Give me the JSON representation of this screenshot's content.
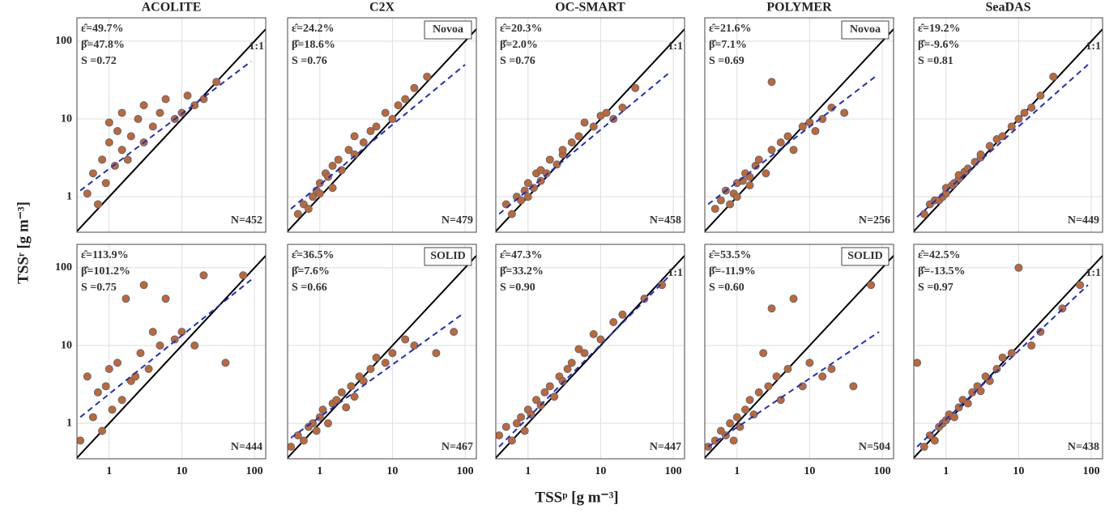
{
  "ylabel": "TSSʳ [g m⁻³]",
  "xlabel": "TSSᵖ [g m⁻³]",
  "chart_data": [
    {
      "type": "scatter",
      "title": "ACOLITE",
      "eps": "ε̂=49.7%",
      "beta": "β̂=47.8%",
      "s": "S =0.72",
      "n": "N=452",
      "identity_label": "1:1",
      "x": [
        0.5,
        0.6,
        0.7,
        0.8,
        0.9,
        1,
        1,
        1.2,
        1.3,
        1.5,
        1.5,
        1.8,
        2,
        2.5,
        3,
        3,
        4,
        5,
        6,
        8,
        10,
        12,
        15,
        20,
        30
      ],
      "values": [
        1.1,
        2,
        0.8,
        3,
        1.5,
        5,
        9,
        2.5,
        7,
        4,
        12,
        3,
        6,
        10,
        5,
        15,
        8,
        12,
        18,
        10,
        12,
        20,
        15,
        18,
        30
      ],
      "fit_x": [
        0.4,
        90
      ],
      "fit_y": [
        1.2,
        55
      ],
      "xlim": [
        0.36,
        143
      ],
      "ylim": [
        0.35,
        200
      ],
      "xticks": [
        1,
        10,
        100
      ],
      "yticks": [
        1,
        10,
        100
      ],
      "log": true,
      "grid": true,
      "point_color": "#c8662a",
      "point_edge": "#4d6d8f",
      "fit_color": "#1f2fbf"
    },
    {
      "type": "scatter",
      "title": "C2X",
      "eps": "ε̂=24.2%",
      "beta": "β̂=18.6%",
      "s": "S =0.76",
      "n": "N=479",
      "method": "Novoa",
      "x": [
        0.5,
        0.6,
        0.7,
        0.8,
        0.9,
        1,
        1,
        1.2,
        1.3,
        1.5,
        1.5,
        1.8,
        2,
        2.5,
        3,
        3,
        4,
        5,
        6,
        8,
        10,
        12,
        15,
        20,
        30
      ],
      "values": [
        0.6,
        0.8,
        0.7,
        1,
        1.2,
        1.5,
        1.1,
        2,
        1.8,
        2.5,
        1.3,
        3,
        2.2,
        4,
        3.5,
        6,
        5,
        7,
        8,
        12,
        10,
        15,
        18,
        25,
        35
      ],
      "fit_x": [
        0.4,
        100
      ],
      "fit_y": [
        0.7,
        50
      ],
      "xlim": [
        0.36,
        143
      ],
      "ylim": [
        0.35,
        200
      ],
      "xticks": [
        1,
        10,
        100
      ],
      "yticks": [
        1,
        10,
        100
      ],
      "log": true,
      "grid": true,
      "point_color": "#c8662a",
      "point_edge": "#4d6d8f",
      "fit_color": "#1f2fbf"
    },
    {
      "type": "scatter",
      "title": "OC-SMART",
      "eps": "ε̂=20.3%",
      "beta": "β̂=2.0%",
      "s": "S =0.76",
      "n": "N=458",
      "identity_label": "1:1",
      "x": [
        0.5,
        0.6,
        0.7,
        0.8,
        0.9,
        1,
        1,
        1.2,
        1.3,
        1.5,
        1.5,
        1.8,
        2,
        2.5,
        3,
        3,
        4,
        5,
        6,
        8,
        10,
        12,
        15,
        20,
        30
      ],
      "values": [
        0.8,
        0.6,
        1,
        0.9,
        1.2,
        1,
        1.5,
        1.3,
        2,
        1.6,
        2.2,
        2,
        3,
        2.6,
        3.5,
        4,
        5,
        6,
        9,
        8,
        11,
        12,
        10,
        14,
        25
      ],
      "fit_x": [
        0.4,
        90
      ],
      "fit_y": [
        0.6,
        40
      ],
      "xlim": [
        0.36,
        143
      ],
      "ylim": [
        0.35,
        200
      ],
      "xticks": [
        1,
        10,
        100
      ],
      "yticks": [
        1,
        10,
        100
      ],
      "log": true,
      "grid": true,
      "point_color": "#c8662a",
      "point_edge": "#4d6d8f",
      "fit_color": "#1f2fbf"
    },
    {
      "type": "scatter",
      "title": "POLYMER",
      "eps": "ε̂=21.6%",
      "beta": "β̂=7.1%",
      "s": "S =0.69",
      "n": "N=256",
      "method": "Novoa",
      "x": [
        0.5,
        0.6,
        0.7,
        0.8,
        0.9,
        1,
        1,
        1.2,
        1.3,
        1.5,
        1.5,
        1.8,
        2,
        2.5,
        3,
        3,
        4,
        5,
        6,
        8,
        10,
        12,
        15,
        20,
        30
      ],
      "values": [
        0.7,
        0.9,
        1.2,
        0.8,
        1.1,
        1.5,
        1,
        1.6,
        2,
        1.8,
        1.4,
        2.5,
        3,
        2,
        4,
        30,
        5,
        6,
        4,
        8,
        9,
        7,
        10,
        14,
        12
      ],
      "fit_x": [
        0.4,
        80
      ],
      "fit_y": [
        0.8,
        35
      ],
      "xlim": [
        0.36,
        143
      ],
      "ylim": [
        0.35,
        200
      ],
      "xticks": [
        1,
        10,
        100
      ],
      "yticks": [
        1,
        10,
        100
      ],
      "log": true,
      "grid": true,
      "point_color": "#c8662a",
      "point_edge": "#4d6d8f",
      "fit_color": "#1f2fbf"
    },
    {
      "type": "scatter",
      "title": "SeaDAS",
      "eps": "ε̂=19.2%",
      "beta": "β̂=-9.6%",
      "s": "S =0.81",
      "n": "N=449",
      "identity_label": "1:1",
      "x": [
        0.5,
        0.6,
        0.7,
        0.8,
        0.9,
        1,
        1,
        1.2,
        1.3,
        1.5,
        1.5,
        1.8,
        2,
        2.5,
        3,
        3,
        4,
        5,
        6,
        8,
        10,
        12,
        15,
        20,
        30
      ],
      "values": [
        0.6,
        0.8,
        0.9,
        0.9,
        1,
        1.1,
        1.3,
        1.4,
        1.5,
        1.7,
        1.9,
        2.1,
        2.3,
        2.8,
        3.2,
        3.5,
        4.5,
        5.5,
        6,
        8,
        10,
        12,
        14,
        20,
        35
      ],
      "fit_x": [
        0.4,
        90
      ],
      "fit_y": [
        0.55,
        50
      ],
      "xlim": [
        0.36,
        143
      ],
      "ylim": [
        0.35,
        200
      ],
      "xticks": [
        1,
        10,
        100
      ],
      "yticks": [
        1,
        10,
        100
      ],
      "log": true,
      "grid": true,
      "point_color": "#c8662a",
      "point_edge": "#4d6d8f",
      "fit_color": "#1f2fbf"
    },
    {
      "type": "scatter",
      "eps": "ε̂=113.9%",
      "beta": "β̂=101.2%",
      "s": "S =0.75",
      "n": "N=444",
      "x": [
        0.4,
        0.5,
        0.6,
        0.7,
        0.8,
        0.9,
        1,
        1.1,
        1.3,
        1.5,
        1.7,
        2,
        2.3,
        2.7,
        3,
        3.5,
        4,
        5,
        6,
        8,
        10,
        15,
        20,
        40,
        70
      ],
      "values": [
        0.6,
        4,
        1.2,
        2.5,
        0.8,
        3,
        5,
        1.5,
        6,
        2,
        40,
        3.5,
        4,
        8,
        60,
        5,
        15,
        10,
        40,
        12,
        15,
        10,
        80,
        6,
        80
      ],
      "fit_x": [
        0.4,
        90
      ],
      "fit_y": [
        1.2,
        70
      ],
      "xlim": [
        0.36,
        143
      ],
      "ylim": [
        0.35,
        200
      ],
      "xticks": [
        1,
        10,
        100
      ],
      "yticks": [
        1,
        10,
        100
      ],
      "log": true,
      "grid": true,
      "point_color": "#c8662a",
      "point_edge": "#4d6d8f",
      "fit_color": "#1f2fbf"
    },
    {
      "type": "scatter",
      "eps": "ε̂=36.5%",
      "beta": "β̂=7.6%",
      "s": "S =0.66",
      "n": "N=467",
      "method": "SOLID",
      "x": [
        0.4,
        0.5,
        0.6,
        0.7,
        0.8,
        0.9,
        1,
        1.1,
        1.3,
        1.5,
        1.7,
        2,
        2.3,
        2.7,
        3,
        3.5,
        4,
        5,
        6,
        8,
        10,
        15,
        20,
        40,
        70
      ],
      "values": [
        0.5,
        0.7,
        0.6,
        0.9,
        1,
        0.8,
        1.2,
        1.5,
        1,
        1.8,
        2,
        2.5,
        1.6,
        3,
        2.2,
        4,
        3.5,
        5,
        7,
        6,
        8,
        12,
        10,
        8,
        15
      ],
      "fit_x": [
        0.4,
        90
      ],
      "fit_y": [
        0.65,
        25
      ],
      "xlim": [
        0.36,
        143
      ],
      "ylim": [
        0.35,
        200
      ],
      "xticks": [
        1,
        10,
        100
      ],
      "yticks": [
        1,
        10,
        100
      ],
      "log": true,
      "grid": true,
      "point_color": "#c8662a",
      "point_edge": "#4d6d8f",
      "fit_color": "#1f2fbf"
    },
    {
      "type": "scatter",
      "eps": "ε̂=47.3%",
      "beta": "β̂=33.2%",
      "s": "S =0.90",
      "n": "N=447",
      "identity_label": "1:1",
      "x": [
        0.4,
        0.5,
        0.6,
        0.7,
        0.8,
        0.9,
        1,
        1.1,
        1.3,
        1.5,
        1.7,
        2,
        2.3,
        2.7,
        3,
        3.5,
        4,
        5,
        6,
        8,
        10,
        15,
        20,
        40,
        70
      ],
      "values": [
        0.7,
        0.9,
        0.6,
        1,
        1.2,
        0.8,
        1.5,
        1.3,
        2,
        1.7,
        2.5,
        3,
        2.2,
        4,
        3.5,
        5,
        6,
        9,
        8,
        14,
        12,
        20,
        25,
        40,
        60
      ],
      "fit_x": [
        0.4,
        90
      ],
      "fit_y": [
        0.5,
        80
      ],
      "xlim": [
        0.36,
        143
      ],
      "ylim": [
        0.35,
        200
      ],
      "xticks": [
        1,
        10,
        100
      ],
      "yticks": [
        1,
        10,
        100
      ],
      "log": true,
      "grid": true,
      "point_color": "#c8662a",
      "point_edge": "#4d6d8f",
      "fit_color": "#1f2fbf"
    },
    {
      "type": "scatter",
      "eps": "ε̂=53.5%",
      "beta": "β̂=-11.9%",
      "s": "S =0.60",
      "n": "N=504",
      "method": "SOLID",
      "x": [
        0.4,
        0.5,
        0.6,
        0.7,
        0.8,
        0.9,
        1,
        1.1,
        1.3,
        1.5,
        1.7,
        2,
        2.3,
        2.7,
        3,
        3.5,
        4,
        5,
        6,
        8,
        10,
        15,
        20,
        40,
        70
      ],
      "values": [
        0.5,
        0.6,
        0.8,
        0.7,
        1,
        0.6,
        1.2,
        0.9,
        1.5,
        2,
        1.3,
        2.5,
        8,
        3,
        30,
        4,
        2,
        5,
        40,
        3,
        6,
        4,
        5,
        3,
        60
      ],
      "fit_x": [
        0.4,
        90
      ],
      "fit_y": [
        0.5,
        15
      ],
      "xlim": [
        0.36,
        143
      ],
      "ylim": [
        0.35,
        200
      ],
      "xticks": [
        1,
        10,
        100
      ],
      "yticks": [
        1,
        10,
        100
      ],
      "log": true,
      "grid": true,
      "point_color": "#c8662a",
      "point_edge": "#4d6d8f",
      "fit_color": "#1f2fbf"
    },
    {
      "type": "scatter",
      "eps": "ε̂=42.5%",
      "beta": "β̂=-13.5%",
      "s": "S =0.97",
      "n": "N=438",
      "identity_label": "1:1",
      "x": [
        0.4,
        0.5,
        0.6,
        0.7,
        0.8,
        0.9,
        1,
        1.1,
        1.3,
        1.5,
        1.7,
        2,
        2.3,
        2.7,
        3,
        3.5,
        4,
        5,
        6,
        8,
        10,
        15,
        20,
        40,
        70
      ],
      "values": [
        6,
        0.5,
        0.7,
        0.6,
        0.9,
        1,
        1.1,
        1.3,
        1.2,
        1.6,
        2,
        1.8,
        2.5,
        3,
        2.6,
        4,
        3.5,
        5,
        7,
        8,
        100,
        10,
        15,
        30,
        60
      ],
      "fit_x": [
        0.4,
        90
      ],
      "fit_y": [
        0.5,
        60
      ],
      "xlim": [
        0.36,
        143
      ],
      "ylim": [
        0.35,
        200
      ],
      "xticks": [
        1,
        10,
        100
      ],
      "yticks": [
        1,
        10,
        100
      ],
      "log": true,
      "grid": true,
      "point_color": "#c8662a",
      "point_edge": "#4d6d8f",
      "fit_color": "#1f2fbf"
    }
  ]
}
